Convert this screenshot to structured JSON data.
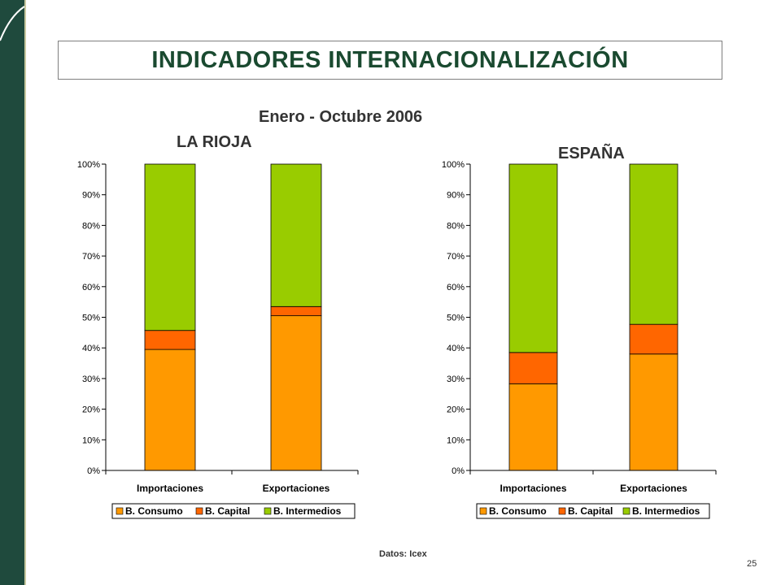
{
  "title": "INDICADORES INTERNACIONALIZACIÓN",
  "period": "Enero - Octubre 2006",
  "source": "Datos: Icex",
  "page_number": "25",
  "colors": {
    "B. Consumo": "#ff9900",
    "B. Capital": "#ff6600",
    "B. Intermedios": "#99cc00",
    "title": "#1a4a30",
    "sidebar": "#1f4a3d"
  },
  "chart_data": [
    {
      "type": "bar",
      "stacked": true,
      "percent": true,
      "region_label": "LA RIOJA",
      "categories": [
        "Importaciones",
        "Exportaciones"
      ],
      "ylim": [
        0,
        100
      ],
      "yticks": [
        "0%",
        "10%",
        "20%",
        "30%",
        "40%",
        "50%",
        "60%",
        "70%",
        "80%",
        "90%",
        "100%"
      ],
      "series": [
        {
          "name": "B. Consumo",
          "values": [
            39.5,
            50.5
          ]
        },
        {
          "name": "B. Capital",
          "values": [
            6.2,
            3.0
          ]
        },
        {
          "name": "B. Intermedios",
          "values": [
            54.3,
            46.5
          ]
        }
      ],
      "legend": "bottom"
    },
    {
      "type": "bar",
      "stacked": true,
      "percent": true,
      "region_label": "ESPAÑA",
      "categories": [
        "Importaciones",
        "Exportaciones"
      ],
      "ylim": [
        0,
        100
      ],
      "yticks": [
        "0%",
        "10%",
        "20%",
        "30%",
        "40%",
        "50%",
        "60%",
        "70%",
        "80%",
        "90%",
        "100%"
      ],
      "series": [
        {
          "name": "B. Consumo",
          "values": [
            28.3,
            38.0
          ]
        },
        {
          "name": "B. Capital",
          "values": [
            10.2,
            9.7
          ]
        },
        {
          "name": "B. Intermedios",
          "values": [
            61.5,
            52.3
          ]
        }
      ],
      "legend": "bottom"
    }
  ]
}
